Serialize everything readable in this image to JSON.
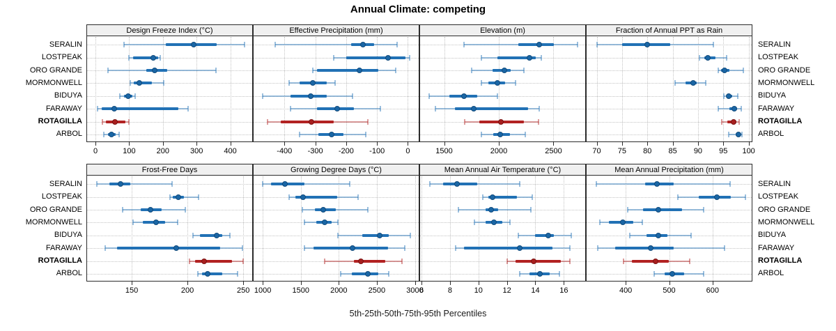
{
  "title": "Annual Climate: competing",
  "caption": "5th-25th-50th-75th-95th Percentiles",
  "sites": [
    "SERALIN",
    "LOSTPEAK",
    "ORO GRANDE",
    "MORMONWELL",
    "BIDUYA",
    "FARAWAY",
    "ROTAGILLA",
    "ARBOL"
  ],
  "highlight_site": "ROTAGILLA",
  "colors": {
    "normal": "#2171b5",
    "normal_light": "rgba(33,113,181,0.45)",
    "normal_dot": "#1a66a5",
    "normal_dot_border": "#134b7c",
    "highlight": "#b22222",
    "highlight_light": "rgba(178,34,34,0.45)",
    "highlight_dot": "#a81f1f",
    "highlight_dot_border": "#791414",
    "grid": "#c3c3c3",
    "header_bg": "#f0f0f0",
    "border": "#2b2b2b"
  },
  "chart_data": {
    "type": "dotplot-percentile-trellis",
    "rows": 2,
    "cols": 4,
    "percentiles": [
      5,
      25,
      50,
      75,
      95
    ],
    "grid": "dotted, at major x ticks and at each site row",
    "legend_position": "none",
    "site_order_top_to_bottom": [
      "SERALIN",
      "LOSTPEAK",
      "ORO GRANDE",
      "MORMONWELL",
      "BIDUYA",
      "FARAWAY",
      "ROTAGILLA",
      "ARBOL"
    ],
    "panels": [
      {
        "title": "Design Freeze Index (°C)",
        "ticks": [
          0,
          100,
          200,
          300,
          400
        ],
        "domain": [
          -25,
          465
        ],
        "values": [
          [
            84,
            208,
            292,
            360,
            443
          ],
          [
            99,
            112,
            172,
            186,
            192
          ],
          [
            37,
            150,
            176,
            212,
            358
          ],
          [
            103,
            114,
            130,
            168,
            202
          ],
          [
            72,
            84,
            97,
            110,
            118
          ],
          [
            5,
            18,
            56,
            246,
            275
          ],
          [
            20,
            30,
            58,
            88,
            100
          ],
          [
            25,
            36,
            47,
            59,
            70
          ]
        ]
      },
      {
        "title": "Effective Precipitation (mm)",
        "ticks": [
          -400,
          -300,
          -200,
          -100,
          0
        ],
        "domain": [
          -500,
          35
        ],
        "values": [
          [
            -430,
            -185,
            -146,
            -110,
            -34
          ],
          [
            -241,
            -200,
            -65,
            -8,
            6
          ],
          [
            -308,
            -295,
            -156,
            -95,
            -39
          ],
          [
            -385,
            -350,
            -307,
            -262,
            -235
          ],
          [
            -470,
            -380,
            -316,
            -264,
            -180
          ],
          [
            -380,
            -295,
            -230,
            -176,
            -90
          ],
          [
            -455,
            -412,
            -312,
            -240,
            -130
          ],
          [
            -350,
            -290,
            -248,
            -208,
            -136
          ]
        ]
      },
      {
        "title": "Elevation (m)",
        "ticks": [
          1500,
          2000,
          2500
        ],
        "domain": [
          1280,
          2790
        ],
        "values": [
          [
            1680,
            2180,
            2370,
            2505,
            2720
          ],
          [
            1840,
            1990,
            2280,
            2335,
            2390
          ],
          [
            1750,
            1940,
            2050,
            2110,
            2230
          ],
          [
            1840,
            1905,
            1990,
            2055,
            2150
          ],
          [
            1360,
            1550,
            1680,
            1805,
            1990
          ],
          [
            1420,
            1600,
            1770,
            2270,
            2370
          ],
          [
            1690,
            1820,
            2020,
            2230,
            2360
          ],
          [
            1840,
            1950,
            2010,
            2105,
            2240
          ]
        ]
      },
      {
        "title": "Fraction of Annual PPT as Rain",
        "ticks": [
          70,
          75,
          80,
          85,
          90,
          95,
          100
        ],
        "domain": [
          68,
          100.6
        ],
        "values": [
          [
            70,
            75,
            80,
            84.5,
            93
          ],
          [
            90.3,
            91.2,
            92,
            93.5,
            95.7
          ],
          [
            94,
            94.6,
            95.2,
            96.2,
            99
          ],
          [
            85.5,
            87.5,
            89,
            89.8,
            91.5
          ],
          [
            95.1,
            95.6,
            96,
            96.7,
            97.8
          ],
          [
            94,
            96.2,
            97.1,
            97.7,
            98.6
          ],
          [
            94.7,
            95.8,
            97,
            97.6,
            98.1
          ],
          [
            96.1,
            97.4,
            98,
            98.3,
            98.7
          ]
        ]
      },
      {
        "title": "Frost-Free Days",
        "ticks": [
          150,
          200,
          250
        ],
        "domain": [
          110,
          258
        ],
        "values": [
          [
            119,
            130,
            140,
            149,
            186
          ],
          [
            184,
            187,
            192,
            197,
            210
          ],
          [
            142,
            158,
            167,
            177,
            198
          ],
          [
            151,
            160,
            172,
            180,
            191
          ],
          [
            205,
            211,
            226,
            231,
            238
          ],
          [
            126,
            137,
            190,
            229,
            249
          ],
          [
            202,
            207,
            215,
            240,
            250
          ],
          [
            209,
            213,
            218,
            231,
            245
          ]
        ]
      },
      {
        "title": "Growing Degree Days (°C)",
        "ticks": [
          1000,
          1500,
          2000,
          2500,
          3000
        ],
        "domain": [
          880,
          3050
        ],
        "values": [
          [
            1000,
            1110,
            1290,
            1550,
            2140
          ],
          [
            1350,
            1430,
            1530,
            1980,
            2250
          ],
          [
            1520,
            1690,
            1800,
            1960,
            2380
          ],
          [
            1550,
            1700,
            1810,
            1910,
            1990
          ],
          [
            1990,
            2310,
            2540,
            2660,
            2940
          ],
          [
            1550,
            1670,
            2180,
            2650,
            2870
          ],
          [
            1810,
            2200,
            2290,
            2615,
            2830
          ],
          [
            2020,
            2170,
            2380,
            2520,
            2660
          ]
        ]
      },
      {
        "title": "Mean Annual Air Temperature (°C)",
        "ticks": [
          6,
          8,
          10,
          12,
          14,
          16
        ],
        "domain": [
          5.9,
          17.5
        ],
        "values": [
          [
            6.6,
            7.5,
            8.5,
            9.9,
            12.9
          ],
          [
            10.3,
            10.7,
            11.0,
            12.7,
            13.8
          ],
          [
            8.6,
            10.5,
            10.9,
            11.4,
            13.7
          ],
          [
            9.7,
            10.5,
            11.1,
            11.7,
            12.2
          ],
          [
            12.8,
            14.0,
            14.9,
            15.3,
            16.5
          ],
          [
            8.4,
            9.0,
            12.9,
            15.2,
            16.4
          ],
          [
            12.0,
            12.6,
            13.9,
            15.8,
            16.4
          ],
          [
            12.9,
            13.6,
            14.3,
            15.0,
            15.7
          ]
        ]
      },
      {
        "title": "Mean Annual Precipitation (mm)",
        "ticks": [
          400,
          500,
          600
        ],
        "domain": [
          310,
          690
        ],
        "values": [
          [
            332,
            445,
            472,
            510,
            640
          ],
          [
            520,
            568,
            610,
            642,
            675
          ],
          [
            405,
            440,
            475,
            530,
            580
          ],
          [
            340,
            362,
            393,
            418,
            438
          ],
          [
            410,
            448,
            475,
            496,
            550
          ],
          [
            335,
            375,
            457,
            510,
            628
          ],
          [
            395,
            415,
            468,
            500,
            547
          ],
          [
            465,
            490,
            508,
            535,
            580
          ]
        ]
      }
    ]
  }
}
